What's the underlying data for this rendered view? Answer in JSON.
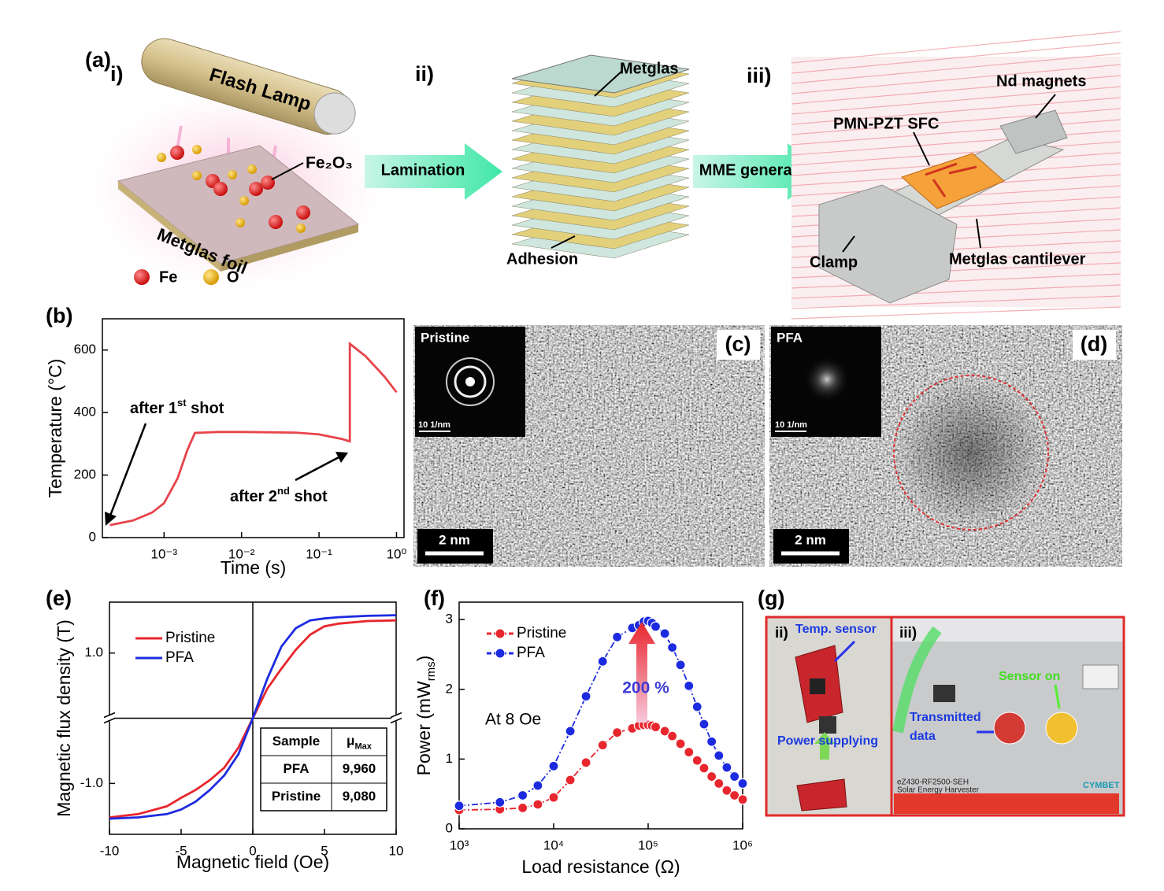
{
  "panel_labels": {
    "a": "(a)",
    "b": "(b)",
    "c": "(c)",
    "d": "(d)",
    "e": "(e)",
    "f": "(f)",
    "g": "(g)"
  },
  "panel_a": {
    "i": {
      "step": "i)",
      "lamp": "Flash Lamp",
      "oxide": "Fe₂O₃",
      "foil": "Metglas foil",
      "legend": [
        "Fe",
        "O"
      ]
    },
    "arrow1": "Lamination",
    "ii": {
      "step": "ii)",
      "top": "Metglas",
      "bottom": "Adhesion"
    },
    "arrow2": "MME generator",
    "iii": {
      "step": "iii)",
      "magnets": "Nd magnets",
      "sfc": "PMN-PZT SFC",
      "clamp": "Clamp",
      "cantilever": "Metglas cantilever"
    }
  },
  "panel_c": {
    "inset": "Pristine",
    "inset_scale": "10 1/nm",
    "scale": "2 nm"
  },
  "panel_d": {
    "inset": "PFA",
    "inset_scale": "10 1/nm",
    "scale": "2 nm"
  },
  "panel_g": {
    "ii": "ii)",
    "iii": "iii)",
    "sensor": "Temp. sensor",
    "power": "Power supplying",
    "transmitted": [
      "Transmitted",
      "data"
    ],
    "sensor_on": "Sensor on",
    "device": "eZ430-RF2500-SEH",
    "harvester": "Solar Energy Harvester",
    "brand": "CYMBET"
  },
  "chart_data": [
    {
      "type": "line",
      "x_label": "Time (s)",
      "y_label": "Temperature (°C)",
      "xscale": "log",
      "xlim": [
        0.00016,
        1.25
      ],
      "ylim": [
        0,
        700
      ],
      "xticks": [
        {
          "value": 0.001,
          "label": "10⁻³"
        },
        {
          "value": 0.01,
          "label": "10⁻²"
        },
        {
          "value": 0.1,
          "label": "10⁻¹"
        },
        {
          "value": 1,
          "label": "10⁰"
        }
      ],
      "yticks": [
        0,
        200,
        400,
        600
      ],
      "x": [
        0.0002,
        0.0004,
        0.0007,
        0.001,
        0.0015,
        0.002,
        0.0025,
        0.005,
        0.01,
        0.05,
        0.1,
        0.2,
        0.25,
        0.25,
        0.4,
        0.7,
        1
      ],
      "series": [
        {
          "color": "#e8434a",
          "values": [
            40,
            55,
            80,
            110,
            190,
            280,
            335,
            338,
            338,
            336,
            330,
            315,
            308,
            620,
            580,
            515,
            465
          ]
        }
      ],
      "annotations": [
        {
          "pre": "after 1",
          "sup": "st",
          "post": " shot"
        },
        {
          "pre": "after 2",
          "sup": "nd",
          "post": " shot"
        }
      ]
    },
    {
      "type": "line",
      "x_label": "Magnetic field (Oe)",
      "y_label": "Magnetic flux density (T)",
      "xlim": [
        -10,
        10
      ],
      "ylim": [
        -1.78,
        1.78
      ],
      "xticks": [
        -10,
        -5,
        0,
        5,
        10
      ],
      "yticks": [
        {
          "value": 1,
          "label": "1.0"
        },
        {
          "value": -1,
          "label": "-1.0"
        }
      ],
      "x": [
        -10,
        -8,
        -6,
        -5,
        -4,
        -3,
        -2,
        -1,
        0,
        1,
        2,
        3,
        4,
        5,
        6,
        8,
        10
      ],
      "series": [
        {
          "name": "Pristine",
          "color": "#e8262d",
          "values": [
            -1.52,
            -1.47,
            -1.35,
            -1.22,
            -1.1,
            -0.95,
            -0.76,
            -0.45,
            0,
            0.45,
            0.76,
            1.05,
            1.28,
            1.41,
            1.45,
            1.49,
            1.5
          ]
        },
        {
          "name": "PFA",
          "color": "#1d2be0",
          "values": [
            -1.54,
            -1.52,
            -1.47,
            -1.4,
            -1.28,
            -1.1,
            -0.88,
            -0.55,
            0,
            0.6,
            1.1,
            1.38,
            1.5,
            1.53,
            1.55,
            1.57,
            1.58
          ]
        }
      ],
      "table": {
        "header": [
          "Sample",
          {
            "pre": "μ",
            "sub": "Max"
          }
        ],
        "rows": [
          [
            "PFA",
            "9,960"
          ],
          [
            "Pristine",
            "9,080"
          ]
        ]
      }
    },
    {
      "type": "line",
      "markers": true,
      "x_label": "Load resistance (Ω)",
      "y_label": {
        "pre": "Power (mW",
        "sub": "rms",
        "post": ")"
      },
      "xscale": "log",
      "xlim": [
        1000,
        1000000
      ],
      "ylim": [
        0,
        3.25
      ],
      "xticks": [
        {
          "value": 1000,
          "label": "10³"
        },
        {
          "value": 10000,
          "label": "10⁴"
        },
        {
          "value": 100000,
          "label": "10⁵"
        },
        {
          "value": 1000000,
          "label": "10⁶"
        }
      ],
      "yticks": [
        0,
        1,
        2,
        3
      ],
      "x": [
        1000,
        2700,
        4700,
        6800,
        10000,
        15000,
        22000,
        33000,
        47000,
        68000,
        80000,
        90000,
        100000,
        110000,
        120000,
        150000,
        180000,
        220000,
        270000,
        330000,
        390000,
        470000,
        560000,
        680000,
        820000,
        1000000
      ],
      "series": [
        {
          "name": "Pristine",
          "color": "#e8262d",
          "values": [
            0.27,
            0.28,
            0.3,
            0.35,
            0.45,
            0.7,
            0.95,
            1.2,
            1.38,
            1.44,
            1.48,
            1.49,
            1.49,
            1.48,
            1.46,
            1.4,
            1.33,
            1.22,
            1.1,
            0.98,
            0.87,
            0.75,
            0.65,
            0.55,
            0.48,
            0.42
          ]
        },
        {
          "name": "PFA",
          "color": "#1d2be0",
          "values": [
            0.33,
            0.38,
            0.48,
            0.62,
            0.9,
            1.4,
            1.9,
            2.4,
            2.75,
            2.88,
            2.92,
            2.97,
            2.98,
            2.95,
            2.9,
            2.8,
            2.6,
            2.35,
            2.05,
            1.75,
            1.5,
            1.25,
            1.05,
            0.88,
            0.75,
            0.65
          ]
        }
      ],
      "annotations": [
        "200 %",
        "At 8 Oe"
      ]
    }
  ]
}
